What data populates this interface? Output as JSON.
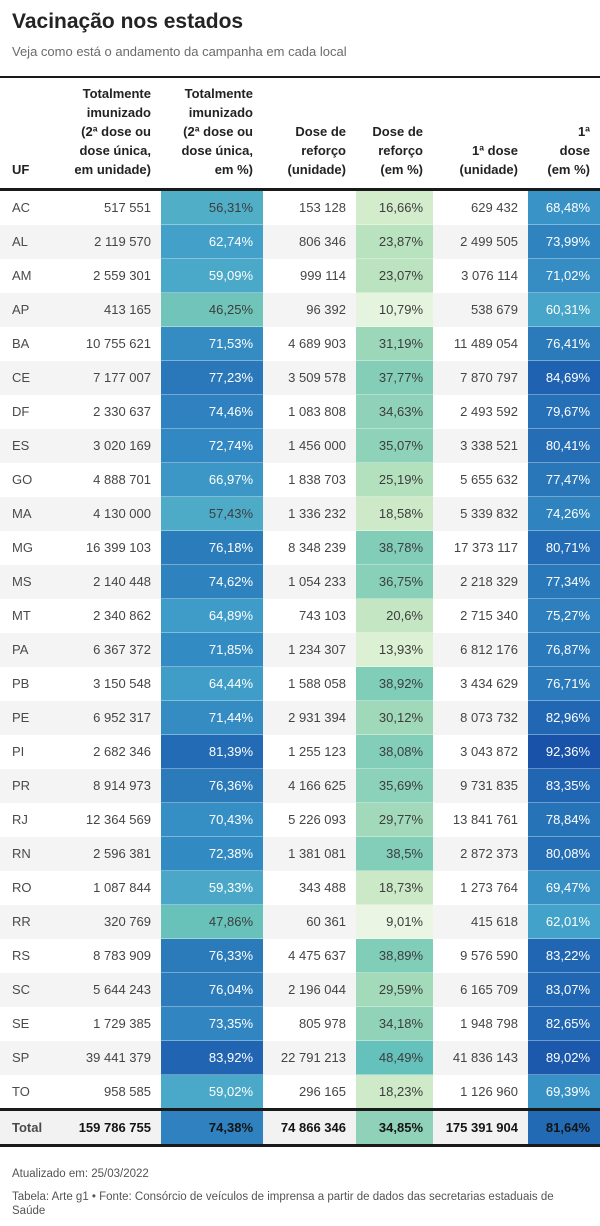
{
  "header": {
    "title": "Vacinação nos estados",
    "subtitle": "Veja como está o andamento da campanha em cada local"
  },
  "chart_data": {
    "type": "table",
    "heatmap": true,
    "legend_position": "none",
    "percent_scale_range": [
      0,
      100
    ],
    "columns": [
      {
        "label": "UF"
      },
      {
        "label": "Totalmente\nimunizado\n(2ª dose ou\ndose única,\nem unidade)"
      },
      {
        "label": "Totalmente\nimunizado\n(2ª dose ou\ndose única,\nem %)"
      },
      {
        "label": "Dose de\nreforço\n(unidade)"
      },
      {
        "label": "Dose de\nreforço\n(em %)"
      },
      {
        "label": "1ª dose\n(unidade)"
      },
      {
        "label": "1ª\ndose\n(em %)"
      }
    ],
    "rows": [
      {
        "uf": "AC",
        "cells": [
          "517 551",
          56.31,
          "153 128",
          16.66,
          "629 432",
          68.48
        ]
      },
      {
        "uf": "AL",
        "cells": [
          "2 119 570",
          62.74,
          "806 346",
          23.87,
          "2 499 505",
          73.99
        ]
      },
      {
        "uf": "AM",
        "cells": [
          "2 559 301",
          59.09,
          "999 114",
          23.07,
          "3 076 114",
          71.02
        ]
      },
      {
        "uf": "AP",
        "cells": [
          "413 165",
          46.25,
          "96 392",
          10.79,
          "538 679",
          60.31
        ]
      },
      {
        "uf": "BA",
        "cells": [
          "10 755 621",
          71.53,
          "4 689 903",
          31.19,
          "11 489 054",
          76.41
        ]
      },
      {
        "uf": "CE",
        "cells": [
          "7 177 007",
          77.23,
          "3 509 578",
          37.77,
          "7 870 797",
          84.69
        ]
      },
      {
        "uf": "DF",
        "cells": [
          "2 330 637",
          74.46,
          "1 083 808",
          34.63,
          "2 493 592",
          79.67
        ]
      },
      {
        "uf": "ES",
        "cells": [
          "3 020 169",
          72.74,
          "1 456 000",
          35.07,
          "3 338 521",
          80.41
        ]
      },
      {
        "uf": "GO",
        "cells": [
          "4 888 701",
          66.97,
          "1 838 703",
          25.19,
          "5 655 632",
          77.47
        ]
      },
      {
        "uf": "MA",
        "cells": [
          "4 130 000",
          57.43,
          "1 336 232",
          18.58,
          "5 339 832",
          74.26
        ]
      },
      {
        "uf": "MG",
        "cells": [
          "16 399 103",
          76.18,
          "8 348 239",
          38.78,
          "17 373 117",
          80.71
        ]
      },
      {
        "uf": "MS",
        "cells": [
          "2 140 448",
          74.62,
          "1 054 233",
          36.75,
          "2 218 329",
          77.34
        ]
      },
      {
        "uf": "MT",
        "cells": [
          "2 340 862",
          64.89,
          "743 103",
          20.6,
          "2 715 340",
          75.27
        ]
      },
      {
        "uf": "PA",
        "cells": [
          "6 367 372",
          71.85,
          "1 234 307",
          13.93,
          "6 812 176",
          76.87
        ]
      },
      {
        "uf": "PB",
        "cells": [
          "3 150 548",
          64.44,
          "1 588 058",
          38.92,
          "3 434 629",
          76.71
        ]
      },
      {
        "uf": "PE",
        "cells": [
          "6 952 317",
          71.44,
          "2 931 394",
          30.12,
          "8 073 732",
          82.96
        ]
      },
      {
        "uf": "PI",
        "cells": [
          "2 682 346",
          81.39,
          "1 255 123",
          38.08,
          "3 043 872",
          92.36
        ]
      },
      {
        "uf": "PR",
        "cells": [
          "8 914 973",
          76.36,
          "4 166 625",
          35.69,
          "9 731 835",
          83.35
        ]
      },
      {
        "uf": "RJ",
        "cells": [
          "12 364 569",
          70.43,
          "5 226 093",
          29.77,
          "13 841 761",
          78.84
        ]
      },
      {
        "uf": "RN",
        "cells": [
          "2 596 381",
          72.38,
          "1 381 081",
          38.5,
          "2 872 373",
          80.08
        ]
      },
      {
        "uf": "RO",
        "cells": [
          "1 087 844",
          59.33,
          "343 488",
          18.73,
          "1 273 764",
          69.47
        ]
      },
      {
        "uf": "RR",
        "cells": [
          "320 769",
          47.86,
          "60 361",
          9.01,
          "415 618",
          62.01
        ]
      },
      {
        "uf": "RS",
        "cells": [
          "8 783 909",
          76.33,
          "4 475 637",
          38.89,
          "9 576 590",
          83.22
        ]
      },
      {
        "uf": "SC",
        "cells": [
          "5 644 243",
          76.04,
          "2 196 044",
          29.59,
          "6 165 709",
          83.07
        ]
      },
      {
        "uf": "SE",
        "cells": [
          "1 729 385",
          73.35,
          "805 978",
          34.18,
          "1 948 798",
          82.65
        ]
      },
      {
        "uf": "SP",
        "cells": [
          "39 441 379",
          83.92,
          "22 791 213",
          48.49,
          "41 836 143",
          89.02
        ]
      },
      {
        "uf": "TO",
        "cells": [
          "958 585",
          59.02,
          "296 165",
          18.23,
          "1 126 960",
          69.39
        ]
      }
    ],
    "total": {
      "uf": "Total",
      "cells": [
        "159 786 755",
        74.38,
        "74 866 346",
        34.85,
        "175 391 904",
        81.64
      ]
    }
  },
  "footer": {
    "updated": "Atualizado em: 25/03/2022",
    "source": "Tabela: Arte g1 • Fonte: Consórcio de veículos de imprensa a partir de dados das secretarias estaduais de Saúde"
  },
  "style": {
    "border_color": "#1a1a1a",
    "alt_row_bg": "#f4f4f4",
    "white_text_min_percent": 58,
    "heatmap_scale": [
      [
        0,
        "#f2faee"
      ],
      [
        9,
        "#eaf6e3"
      ],
      [
        14,
        "#dcf0d4"
      ],
      [
        18,
        "#cfeac8"
      ],
      [
        23,
        "#bce3bf"
      ],
      [
        28,
        "#a8dcbb"
      ],
      [
        34,
        "#92d3b9"
      ],
      [
        39,
        "#80cdb8"
      ],
      [
        46,
        "#72c4b9"
      ],
      [
        49,
        "#62c0bb"
      ],
      [
        54,
        "#55b4c6"
      ],
      [
        58,
        "#4daac8"
      ],
      [
        62,
        "#43a2c9"
      ],
      [
        67,
        "#3c97c7"
      ],
      [
        72,
        "#338bc3"
      ],
      [
        77,
        "#2a79ba"
      ],
      [
        82,
        "#2269b4"
      ],
      [
        86,
        "#1e5fb0"
      ],
      [
        90,
        "#1b56ab"
      ],
      [
        94,
        "#1850a8"
      ],
      [
        100,
        "#12439a"
      ]
    ]
  }
}
